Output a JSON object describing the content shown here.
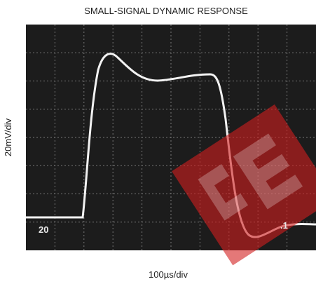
{
  "title": "SMALL-SIGNAL DYNAMIC RESPONSE",
  "x_label": "100µs/div",
  "y_label": "20mV/div",
  "screen": {
    "left_label": "20",
    "right_label": ".1"
  }
}
